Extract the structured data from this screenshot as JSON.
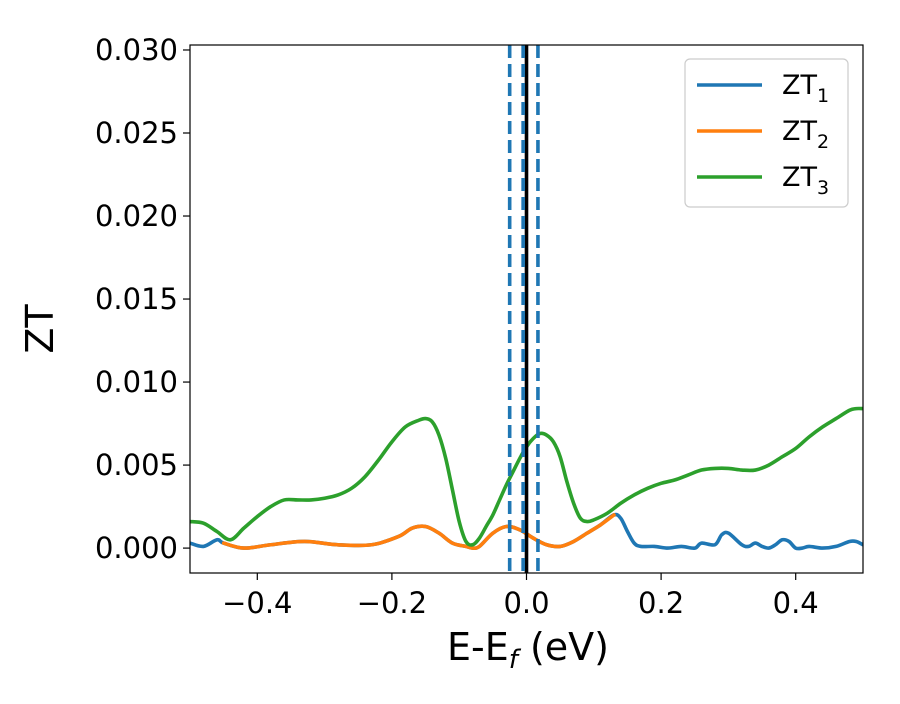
{
  "chart_data": {
    "type": "line",
    "title": "",
    "xlabel": "E-E",
    "xlabel_sub": "f",
    "xlabel_unit": " (eV)",
    "ylabel": "ZT",
    "xlim": [
      -0.5,
      0.5
    ],
    "ylim": [
      -0.0015,
      0.0303
    ],
    "xticks": [
      -0.4,
      -0.2,
      0.0,
      0.2,
      0.4
    ],
    "xtick_labels": [
      "−0.4",
      "−0.2",
      "0.0",
      "0.2",
      "0.4"
    ],
    "yticks": [
      0.0,
      0.005,
      0.01,
      0.015,
      0.02,
      0.025,
      0.03
    ],
    "ytick_labels": [
      "0.000",
      "0.005",
      "0.010",
      "0.015",
      "0.020",
      "0.025",
      "0.030"
    ],
    "grid": false,
    "legend_position": "top-right",
    "colors": {
      "zt1": "#1f77b4",
      "zt2": "#ff7f0e",
      "zt3": "#2ca02c",
      "vline_solid": "#000000",
      "vline_dashed": "#1f77b4"
    },
    "series": [
      {
        "name": "ZT",
        "subscript": "1",
        "color": "#1f77b4",
        "x": [
          -0.5,
          -0.48,
          -0.46,
          -0.45,
          -0.42,
          -0.38,
          -0.33,
          -0.28,
          -0.23,
          -0.19,
          -0.17,
          -0.15,
          -0.13,
          -0.11,
          -0.09,
          -0.08,
          -0.07,
          -0.05,
          -0.03,
          -0.01,
          0.01,
          0.03,
          0.05,
          0.07,
          0.09,
          0.11,
          0.13,
          0.14,
          0.15,
          0.16,
          0.17,
          0.19,
          0.21,
          0.23,
          0.25,
          0.26,
          0.28,
          0.29,
          0.3,
          0.32,
          0.33,
          0.34,
          0.35,
          0.36,
          0.37,
          0.38,
          0.39,
          0.4,
          0.41,
          0.42,
          0.44,
          0.46,
          0.48,
          0.49,
          0.5
        ],
        "y": [
          0.0003,
          0.0001,
          0.0005,
          0.0003,
          0.0,
          0.0002,
          0.0004,
          0.0002,
          0.0002,
          0.0007,
          0.0012,
          0.0013,
          0.0009,
          0.0003,
          0.0001,
          0.0,
          0.0001,
          0.0009,
          0.0013,
          0.0011,
          0.0006,
          0.0002,
          0.0001,
          0.0004,
          0.0009,
          0.0014,
          0.002,
          0.0018,
          0.001,
          0.0003,
          0.0001,
          0.0001,
          0.0,
          0.0001,
          0.0,
          0.0003,
          0.0002,
          0.0008,
          0.0009,
          0.0002,
          0.0001,
          0.0003,
          0.0001,
          0.0,
          0.0002,
          0.0005,
          0.0004,
          0.0,
          0.0,
          0.0001,
          0.0,
          0.0001,
          0.0004,
          0.0004,
          0.0002
        ]
      },
      {
        "name": "ZT",
        "subscript": "2",
        "color": "#ff7f0e",
        "x": [
          -0.45,
          -0.42,
          -0.38,
          -0.33,
          -0.28,
          -0.23,
          -0.19,
          -0.17,
          -0.15,
          -0.13,
          -0.11,
          -0.09,
          -0.08,
          -0.07,
          -0.05,
          -0.03,
          -0.01,
          0.01,
          0.03,
          0.05,
          0.07,
          0.09,
          0.11,
          0.13
        ],
        "y": [
          0.0003,
          0.0,
          0.0002,
          0.0004,
          0.0002,
          0.0002,
          0.0007,
          0.0012,
          0.0013,
          0.0009,
          0.0003,
          0.0001,
          0.0,
          0.0001,
          0.0009,
          0.0013,
          0.0011,
          0.0006,
          0.0002,
          0.0001,
          0.0004,
          0.0009,
          0.0014,
          0.002
        ]
      },
      {
        "name": "ZT",
        "subscript": "3",
        "color": "#2ca02c",
        "x": [
          -0.5,
          -0.48,
          -0.46,
          -0.44,
          -0.42,
          -0.4,
          -0.38,
          -0.36,
          -0.34,
          -0.32,
          -0.3,
          -0.28,
          -0.26,
          -0.24,
          -0.22,
          -0.2,
          -0.18,
          -0.16,
          -0.15,
          -0.14,
          -0.13,
          -0.12,
          -0.11,
          -0.1,
          -0.09,
          -0.08,
          -0.07,
          -0.06,
          -0.05,
          -0.04,
          -0.03,
          -0.02,
          -0.01,
          0.0,
          0.01,
          0.02,
          0.03,
          0.04,
          0.05,
          0.06,
          0.07,
          0.08,
          0.09,
          0.1,
          0.12,
          0.14,
          0.16,
          0.18,
          0.2,
          0.22,
          0.24,
          0.26,
          0.28,
          0.3,
          0.32,
          0.34,
          0.36,
          0.38,
          0.4,
          0.42,
          0.44,
          0.46,
          0.48,
          0.49,
          0.5
        ],
        "y": [
          0.0016,
          0.0015,
          0.001,
          0.0005,
          0.0012,
          0.0019,
          0.0025,
          0.0029,
          0.0029,
          0.0029,
          0.003,
          0.0032,
          0.0036,
          0.0043,
          0.0053,
          0.0064,
          0.0073,
          0.0077,
          0.0078,
          0.0076,
          0.0068,
          0.0054,
          0.0035,
          0.0016,
          0.0004,
          0.0002,
          0.0006,
          0.0013,
          0.002,
          0.0029,
          0.0038,
          0.0046,
          0.0054,
          0.0061,
          0.0066,
          0.0069,
          0.0068,
          0.0064,
          0.0055,
          0.004,
          0.0027,
          0.0018,
          0.0016,
          0.0017,
          0.0021,
          0.0027,
          0.0032,
          0.0036,
          0.0039,
          0.0041,
          0.0044,
          0.0047,
          0.0048,
          0.0048,
          0.0047,
          0.0047,
          0.005,
          0.0055,
          0.006,
          0.0067,
          0.0073,
          0.0078,
          0.0083,
          0.0084,
          0.0084
        ]
      }
    ],
    "vlines": [
      {
        "x": 0.0,
        "style": "solid",
        "color": "#000000"
      },
      {
        "x": -0.025,
        "style": "dashed",
        "color": "#1f77b4"
      },
      {
        "x": -0.005,
        "style": "dashed",
        "color": "#1f77b4"
      },
      {
        "x": 0.017,
        "style": "dashed",
        "color": "#1f77b4"
      }
    ]
  }
}
